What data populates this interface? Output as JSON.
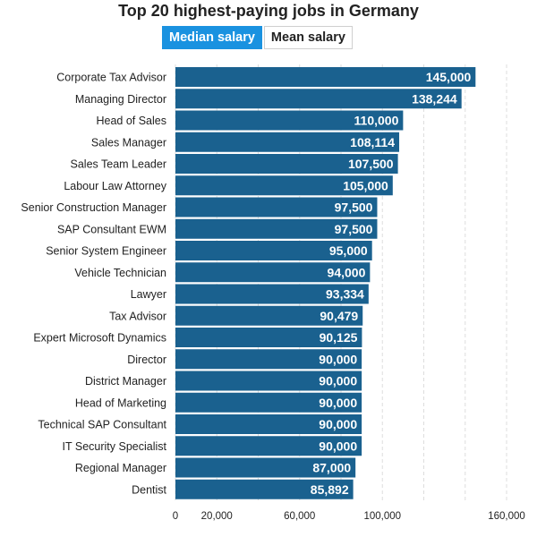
{
  "colors": {
    "bar": "#1a618f",
    "grid": "#dddddd",
    "active_toggle": "#1a92e0"
  },
  "toggles": {
    "median_label": "Median salary",
    "mean_label": "Mean salary"
  },
  "chart_data": {
    "type": "bar",
    "orientation": "horizontal",
    "title": "Top 20 highest-paying jobs in Germany",
    "xlabel": "",
    "ylabel": "",
    "xlim": [
      0,
      160000
    ],
    "ticks": [
      0,
      20000,
      60000,
      100000,
      160000
    ],
    "tick_labels": [
      "0",
      "20,000",
      "60,000",
      "100,000",
      "160,000"
    ],
    "categories": [
      "Corporate Tax Advisor",
      "Managing Director",
      "Head of Sales",
      "Sales Manager",
      "Sales Team Leader",
      "Labour Law Attorney",
      "Senior Construction Manager",
      "SAP Consultant EWM",
      "Senior System Engineer",
      "Vehicle Technician",
      "Lawyer",
      "Tax Advisor",
      "Expert Microsoft Dynamics",
      "Director",
      "District Manager",
      "Head of Marketing",
      "Technical SAP Consultant",
      "IT Security Specialist",
      "Regional Manager",
      "Dentist"
    ],
    "values": [
      145000,
      138244,
      110000,
      108114,
      107500,
      105000,
      97500,
      97500,
      95000,
      94000,
      93334,
      90479,
      90125,
      90000,
      90000,
      90000,
      90000,
      90000,
      87000,
      85892
    ],
    "value_labels": [
      "145,000",
      "138,244",
      "110,000",
      "108,114",
      "107,500",
      "105,000",
      "97,500",
      "97,500",
      "95,000",
      "94,000",
      "93,334",
      "90,479",
      "90,125",
      "90,000",
      "90,000",
      "90,000",
      "90,000",
      "90,000",
      "87,000",
      "85,892"
    ]
  }
}
